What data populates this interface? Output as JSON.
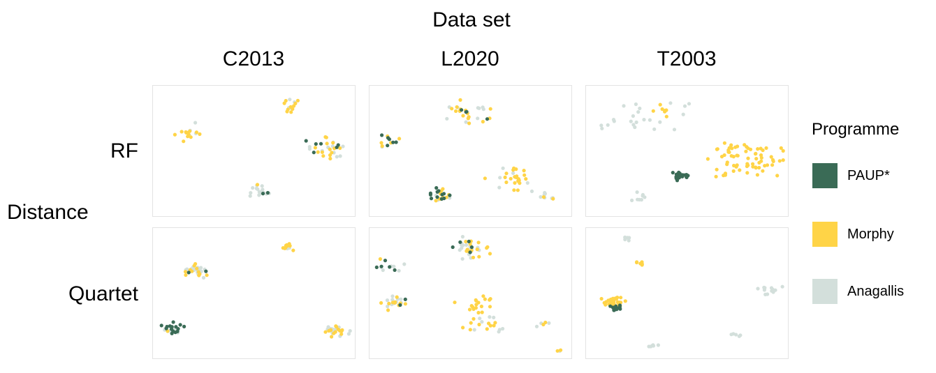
{
  "figure": {
    "title": "Data set",
    "row_axis_label": "Distance",
    "legend_title": "Programme"
  },
  "colors": {
    "PAUP*": "#3a6b56",
    "Morphy": "#ffd447",
    "Anagallis": "#d3dfdb"
  },
  "chart_data": {
    "type": "scatter",
    "columns": [
      "C2013",
      "L2020",
      "T2003"
    ],
    "rows": [
      "RF",
      "Quartet"
    ],
    "series": [
      {
        "name": "PAUP*"
      },
      {
        "name": "Morphy"
      },
      {
        "name": "Anagallis"
      }
    ],
    "note_axes": "no tick labels are printed; values are unitless coordinates in 0-100 within each panel",
    "panels": [
      {
        "column": "C2013",
        "row": "RF",
        "clusters": [
          {
            "x": 16,
            "y": 34,
            "n": 16,
            "spread": 4,
            "mix": [
              0,
              0.6,
              0.4
            ]
          },
          {
            "x": 68,
            "y": 12,
            "n": 14,
            "spread": 3,
            "mix": [
              0,
              0.75,
              0.25
            ]
          },
          {
            "x": 87,
            "y": 47,
            "n": 30,
            "spread": 4.5,
            "mix": [
              0.15,
              0.55,
              0.3
            ]
          },
          {
            "x": 53,
            "y": 82,
            "n": 20,
            "spread": 2.5,
            "mix": [
              0.35,
              0.05,
              0.6
            ]
          }
        ]
      },
      {
        "column": "L2020",
        "row": "RF",
        "clusters": [
          {
            "x": 48,
            "y": 18,
            "n": 30,
            "spread": 5,
            "mix": [
              0.1,
              0.55,
              0.35
            ]
          },
          {
            "x": 8,
            "y": 42,
            "n": 14,
            "spread": 3,
            "mix": [
              0.3,
              0.4,
              0.3
            ]
          },
          {
            "x": 70,
            "y": 72,
            "n": 26,
            "spread": 5,
            "mix": [
              0,
              0.8,
              0.2
            ]
          },
          {
            "x": 34,
            "y": 85,
            "n": 26,
            "spread": 3,
            "mix": [
              0.55,
              0.3,
              0.15
            ]
          },
          {
            "x": 88,
            "y": 85,
            "n": 10,
            "spread": 3.5,
            "mix": [
              0,
              0.2,
              0.8
            ]
          }
        ]
      },
      {
        "column": "T2003",
        "row": "RF",
        "clusters": [
          {
            "x": 18,
            "y": 25,
            "n": 18,
            "spread": 7,
            "mix": [
              0,
              0,
              1
            ]
          },
          {
            "x": 40,
            "y": 20,
            "n": 12,
            "spread": 6,
            "mix": [
              0,
              0.3,
              0.7
            ]
          },
          {
            "x": 80,
            "y": 55,
            "n": 70,
            "spread": 10,
            "mix": [
              0,
              1,
              0
            ]
          },
          {
            "x": 46,
            "y": 70,
            "n": 22,
            "spread": 1.8,
            "mix": [
              1,
              0,
              0
            ]
          },
          {
            "x": 26,
            "y": 88,
            "n": 8,
            "spread": 2.5,
            "mix": [
              0,
              0,
              1
            ]
          }
        ]
      },
      {
        "column": "C2013",
        "row": "Quartet",
        "clusters": [
          {
            "x": 67,
            "y": 12,
            "n": 14,
            "spread": 2,
            "mix": [
              0,
              0.85,
              0.15
            ]
          },
          {
            "x": 20,
            "y": 31,
            "n": 34,
            "spread": 3,
            "mix": [
              0.15,
              0.3,
              0.55
            ]
          },
          {
            "x": 8,
            "y": 78,
            "n": 30,
            "spread": 2.5,
            "mix": [
              0.45,
              0.1,
              0.45
            ]
          },
          {
            "x": 92,
            "y": 80,
            "n": 30,
            "spread": 3,
            "mix": [
              0,
              0.55,
              0.45
            ]
          }
        ]
      },
      {
        "column": "L2020",
        "row": "Quartet",
        "clusters": [
          {
            "x": 50,
            "y": 14,
            "n": 38,
            "spread": 5,
            "mix": [
              0.08,
              0.55,
              0.37
            ]
          },
          {
            "x": 8,
            "y": 27,
            "n": 12,
            "spread": 3,
            "mix": [
              0.3,
              0.4,
              0.3
            ]
          },
          {
            "x": 10,
            "y": 57,
            "n": 24,
            "spread": 3,
            "mix": [
              0.15,
              0.55,
              0.3
            ]
          },
          {
            "x": 54,
            "y": 59,
            "n": 18,
            "spread": 5,
            "mix": [
              0,
              1,
              0
            ]
          },
          {
            "x": 58,
            "y": 74,
            "n": 18,
            "spread": 6,
            "mix": [
              0,
              0.45,
              0.55
            ]
          },
          {
            "x": 87,
            "y": 74,
            "n": 5,
            "spread": 1.5,
            "mix": [
              0,
              0.4,
              0.6
            ]
          },
          {
            "x": 96,
            "y": 96,
            "n": 3,
            "spread": 1,
            "mix": [
              0,
              0.5,
              0.5
            ]
          }
        ]
      },
      {
        "column": "T2003",
        "row": "Quartet",
        "clusters": [
          {
            "x": 18,
            "y": 5,
            "n": 6,
            "spread": 1.5,
            "mix": [
              0,
              0,
              1
            ]
          },
          {
            "x": 27,
            "y": 25,
            "n": 6,
            "spread": 1.5,
            "mix": [
              0,
              1,
              0
            ]
          },
          {
            "x": 12,
            "y": 57,
            "n": 36,
            "spread": 3,
            "mix": [
              0,
              1,
              0
            ]
          },
          {
            "x": 13,
            "y": 61,
            "n": 14,
            "spread": 1.5,
            "mix": [
              1,
              0,
              0
            ]
          },
          {
            "x": 92,
            "y": 46,
            "n": 12,
            "spread": 2.5,
            "mix": [
              0,
              0,
              1
            ]
          },
          {
            "x": 75,
            "y": 83,
            "n": 5,
            "spread": 1.5,
            "mix": [
              0,
              0,
              1
            ]
          },
          {
            "x": 32,
            "y": 92,
            "n": 6,
            "spread": 1.5,
            "mix": [
              0,
              0,
              1
            ]
          }
        ]
      }
    ]
  }
}
